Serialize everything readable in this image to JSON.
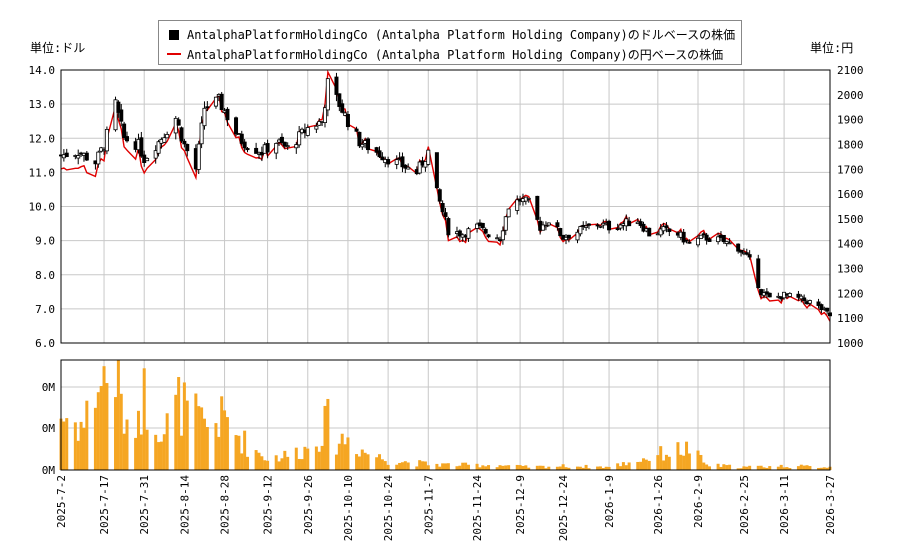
{
  "colors": {
    "candle_up_fill": "#ffffff",
    "candle_down_fill": "#000000",
    "yen_line": "#e00000",
    "volume_bar": "#f5a623",
    "grid": "#c8c8c8"
  },
  "legend": {
    "dollar_series": "AntalphaPlatformHoldingCo (Antalpha Platform Holding Company)のドルベースの株価",
    "yen_series": "AntalphaPlatformHoldingCo (Antalpha Platform Holding Company)の円ベースの株価"
  },
  "units": {
    "left": "単位:ドル",
    "right": "単位:円"
  },
  "chart_data": [
    {
      "type": "candlestick",
      "title": "",
      "y_left": {
        "range": [
          6.0,
          14.0
        ],
        "ticks": [
          "6.0",
          "7.0",
          "8.0",
          "9.0",
          "10.0",
          "11.0",
          "12.0",
          "13.0",
          "14.0"
        ]
      },
      "y_right": {
        "range": [
          1000,
          2100
        ],
        "ticks": [
          "1000",
          "1100",
          "1200",
          "1300",
          "1400",
          "1500",
          "1600",
          "1700",
          "1800",
          "1900",
          "2000",
          "2100"
        ]
      },
      "x": {
        "start": "2025-07-02",
        "end": "2026-03-27",
        "ticks": [
          "2025-7-2",
          "2025-7-17",
          "2025-7-31",
          "2025-8-14",
          "2025-8-28",
          "2025-9-12",
          "2025-9-26",
          "2025-10-10",
          "2025-10-24",
          "2025-11-7",
          "2025-11-24",
          "2025-12-9",
          "2025-12-24",
          "2026-1-9",
          "2026-1-26",
          "2026-2-9",
          "2026-2-25",
          "2026-3-11",
          "2026-3-27"
        ]
      },
      "grid": true,
      "legend_placement": "top",
      "series": [
        {
          "name": "AntalphaPlatformHoldingCo (Antalpha Platform Holding Company)のドルベースの株価",
          "axis": "left",
          "close_anchors": [
            [
              "2025-07-02",
              11.5
            ],
            [
              "2025-07-08",
              11.6
            ],
            [
              "2025-07-14",
              11.3
            ],
            [
              "2025-07-17",
              11.8
            ],
            [
              "2025-07-21",
              13.0
            ],
            [
              "2025-07-24",
              12.0
            ],
            [
              "2025-07-29",
              11.8
            ],
            [
              "2025-07-31",
              11.4
            ],
            [
              "2025-08-05",
              11.9
            ],
            [
              "2025-08-11",
              12.6
            ],
            [
              "2025-08-14",
              11.8
            ],
            [
              "2025-08-18",
              11.1
            ],
            [
              "2025-08-21",
              12.9
            ],
            [
              "2025-08-26",
              13.1
            ],
            [
              "2025-08-28",
              12.8
            ],
            [
              "2025-09-02",
              12.0
            ],
            [
              "2025-09-05",
              11.8
            ],
            [
              "2025-09-10",
              11.6
            ],
            [
              "2025-09-15",
              11.9
            ],
            [
              "2025-09-19",
              11.7
            ],
            [
              "2025-09-26",
              12.3
            ],
            [
              "2025-10-01",
              12.5
            ],
            [
              "2025-10-03",
              13.6
            ],
            [
              "2025-10-07",
              13.0
            ],
            [
              "2025-10-10",
              12.5
            ],
            [
              "2025-10-14",
              11.9
            ],
            [
              "2025-10-20",
              11.6
            ],
            [
              "2025-10-24",
              11.4
            ],
            [
              "2025-10-29",
              11.2
            ],
            [
              "2025-11-03",
              11.0
            ],
            [
              "2025-11-07",
              11.6
            ],
            [
              "2025-11-10",
              10.4
            ],
            [
              "2025-11-14",
              9.3
            ],
            [
              "2025-11-19",
              9.2
            ],
            [
              "2025-11-24",
              9.4
            ],
            [
              "2025-11-28",
              9.2
            ],
            [
              "2025-12-02",
              9.1
            ],
            [
              "2025-12-05",
              10.0
            ],
            [
              "2025-12-09",
              10.2
            ],
            [
              "2025-12-12",
              10.1
            ],
            [
              "2025-12-16",
              9.4
            ],
            [
              "2025-12-19",
              9.6
            ],
            [
              "2025-12-24",
              9.1
            ],
            [
              "2025-12-30",
              9.3
            ],
            [
              "2026-01-05",
              9.5
            ],
            [
              "2026-01-09",
              9.4
            ],
            [
              "2026-01-14",
              9.5
            ],
            [
              "2026-01-19",
              9.6
            ],
            [
              "2026-01-23",
              9.2
            ],
            [
              "2026-01-28",
              9.3
            ],
            [
              "2026-02-02",
              9.2
            ],
            [
              "2026-02-06",
              8.9
            ],
            [
              "2026-02-11",
              9.1
            ],
            [
              "2026-02-17",
              9.0
            ],
            [
              "2026-02-23",
              8.8
            ],
            [
              "2026-02-27",
              8.4
            ],
            [
              "2026-03-03",
              7.5
            ],
            [
              "2026-03-06",
              7.3
            ],
            [
              "2026-03-11",
              7.4
            ],
            [
              "2026-03-16",
              7.3
            ],
            [
              "2026-03-20",
              7.2
            ],
            [
              "2026-03-24",
              7.0
            ],
            [
              "2026-03-27",
              6.8
            ]
          ]
        },
        {
          "name": "AntalphaPlatformHoldingCo (Antalpha Platform Holding Company)の円ベースの株価",
          "axis": "right",
          "derived_from": "dollar close × USDJPY (~148→160)"
        }
      ]
    },
    {
      "type": "bar",
      "title": "",
      "y_ticks": [
        "0M",
        "0M",
        "0M"
      ],
      "volume_anchors": [
        [
          "2025-07-02",
          0.55
        ],
        [
          "2025-07-10",
          0.45
        ],
        [
          "2025-07-14",
          0.85
        ],
        [
          "2025-07-21",
          1.0
        ],
        [
          "2025-07-25",
          0.35
        ],
        [
          "2025-07-31",
          0.75
        ],
        [
          "2025-08-07",
          0.4
        ],
        [
          "2025-08-12",
          0.68
        ],
        [
          "2025-08-21",
          0.45
        ],
        [
          "2025-08-28",
          0.52
        ],
        [
          "2025-09-05",
          0.25
        ],
        [
          "2025-09-12",
          0.12
        ],
        [
          "2025-09-19",
          0.15
        ],
        [
          "2025-09-26",
          0.22
        ],
        [
          "2025-10-03",
          0.48
        ],
        [
          "2025-10-06",
          0.3
        ],
        [
          "2025-10-10",
          0.32
        ],
        [
          "2025-10-16",
          0.18
        ],
        [
          "2025-10-24",
          0.1
        ],
        [
          "2025-11-07",
          0.06
        ],
        [
          "2025-11-20",
          0.05
        ],
        [
          "2025-12-01",
          0.05
        ],
        [
          "2025-12-12",
          0.03
        ],
        [
          "2025-12-24",
          0.04
        ],
        [
          "2026-01-09",
          0.03
        ],
        [
          "2026-01-22",
          0.12
        ],
        [
          "2026-01-29",
          0.18
        ],
        [
          "2026-02-06",
          0.22
        ],
        [
          "2026-02-12",
          0.05
        ],
        [
          "2026-02-25",
          0.03
        ],
        [
          "2026-03-11",
          0.04
        ],
        [
          "2026-03-27",
          0.03
        ]
      ]
    }
  ]
}
